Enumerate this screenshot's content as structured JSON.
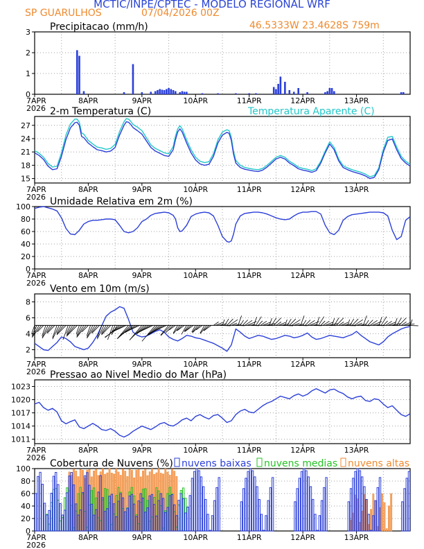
{
  "header": {
    "title": "MCTIC/INPE/CPTEC - MODELO REGIONAL WRF",
    "station": "SP GUARULHOS",
    "run": "07/04/2026 00Z",
    "coords": "46.5333W 23.4628S 759m"
  },
  "colors": {
    "title": "#2a44d6",
    "orange": "#ef8a2e",
    "blue": "#2b3fd8",
    "cyan": "#22c7c9",
    "green": "#25c325",
    "grid": "#a0a0a0"
  },
  "x_axis": {
    "ticks": [
      "7APR",
      "8APR",
      "9APR",
      "10APR",
      "11APR",
      "12APR",
      "13APR"
    ],
    "year": "2026",
    "hours": 168
  },
  "chart_data": [
    {
      "type": "bar",
      "id": "precip",
      "title": "Precipitacao (mm/h)",
      "ylim": [
        0,
        3
      ],
      "yticks": [
        0,
        1,
        2,
        3
      ],
      "x_hours": [
        19,
        20,
        22,
        40,
        44,
        48,
        52,
        54,
        55,
        56,
        57,
        58,
        59,
        60,
        61,
        62,
        63,
        65,
        66,
        67,
        68,
        75,
        82,
        90,
        96,
        99,
        107,
        108,
        109,
        110,
        112,
        114,
        116,
        118,
        122,
        130,
        131,
        132,
        133,
        134,
        164,
        165
      ],
      "values": [
        2.12,
        1.85,
        0.15,
        0.1,
        1.45,
        0.1,
        0.12,
        0.15,
        0.2,
        0.25,
        0.22,
        0.2,
        0.25,
        0.3,
        0.25,
        0.2,
        0.15,
        0.1,
        0.15,
        0.12,
        0.12,
        0.05,
        0.05,
        0.05,
        0.05,
        0.05,
        0.35,
        0.25,
        0.5,
        0.85,
        0.6,
        0.2,
        0.12,
        0.3,
        0.1,
        0.1,
        0.15,
        0.3,
        0.3,
        0.15,
        0.1,
        0.1
      ]
    },
    {
      "type": "line",
      "id": "temp",
      "title": "2-m Temperatura (C)",
      "legend": "Temperatura Aparente (C)",
      "ylim": [
        14,
        29
      ],
      "yticks": [
        15,
        18,
        21,
        24,
        27
      ],
      "x": [
        0,
        2,
        4,
        6,
        8,
        10,
        12,
        14,
        16,
        18,
        19,
        20,
        21,
        22,
        24,
        26,
        28,
        30,
        32,
        34,
        36,
        38,
        40,
        41,
        42,
        43,
        44,
        46,
        48,
        50,
        52,
        54,
        56,
        58,
        60,
        62,
        63,
        64,
        65,
        66,
        68,
        70,
        72,
        74,
        76,
        78,
        80,
        82,
        84,
        86,
        87,
        88,
        89,
        90,
        92,
        94,
        96,
        98,
        100,
        102,
        104,
        106,
        108,
        110,
        111,
        112,
        114,
        116,
        118,
        120,
        122,
        124,
        126,
        128,
        130,
        132,
        134,
        136,
        138,
        140,
        142,
        144,
        146,
        148,
        150,
        152,
        154,
        156,
        158,
        160,
        162,
        164,
        166,
        168
      ],
      "series": [
        {
          "values": [
            20.8,
            20.2,
            19.3,
            17.8,
            17.0,
            17.2,
            20.0,
            23.8,
            26.4,
            27.6,
            27.7,
            27.0,
            24.5,
            24.2,
            23.0,
            22.2,
            21.5,
            21.3,
            21.0,
            21.2,
            22.0,
            24.8,
            27.0,
            27.8,
            27.7,
            27.2,
            26.5,
            25.8,
            25.0,
            23.5,
            22.0,
            21.2,
            20.7,
            20.2,
            20.0,
            21.5,
            23.8,
            25.5,
            26.2,
            25.5,
            23.0,
            20.8,
            19.2,
            18.3,
            18.0,
            18.2,
            20.0,
            23.0,
            24.8,
            25.4,
            25.2,
            23.6,
            20.5,
            18.5,
            17.5,
            17.1,
            16.9,
            16.7,
            16.6,
            16.9,
            17.6,
            18.5,
            19.4,
            19.8,
            19.6,
            19.4,
            18.5,
            17.9,
            17.2,
            16.9,
            16.7,
            16.4,
            16.8,
            18.5,
            20.8,
            22.8,
            21.5,
            19.0,
            17.5,
            17.0,
            16.6,
            16.3,
            16.0,
            15.6,
            15.0,
            15.3,
            17.0,
            21.0,
            23.6,
            23.9,
            21.5,
            19.5,
            18.5,
            17.8
          ]
        },
        {
          "values": [
            21.3,
            20.7,
            19.8,
            18.4,
            17.6,
            17.8,
            20.8,
            24.8,
            27.3,
            28.4,
            28.4,
            27.7,
            25.3,
            25.0,
            23.6,
            22.8,
            22.1,
            21.9,
            21.6,
            21.8,
            22.7,
            25.6,
            27.8,
            28.5,
            28.4,
            27.9,
            27.2,
            26.6,
            25.8,
            24.2,
            22.6,
            21.8,
            21.3,
            20.8,
            20.6,
            22.2,
            24.6,
            26.2,
            26.9,
            26.2,
            23.7,
            21.5,
            19.8,
            18.9,
            18.6,
            18.8,
            20.6,
            23.7,
            25.5,
            26.0,
            25.8,
            24.3,
            21.1,
            19.1,
            18.0,
            17.5,
            17.3,
            17.1,
            17.0,
            17.3,
            18.0,
            18.9,
            19.8,
            20.2,
            20.0,
            19.8,
            18.9,
            18.3,
            17.6,
            17.3,
            17.1,
            16.8,
            17.2,
            18.9,
            21.2,
            23.3,
            22.0,
            19.4,
            17.9,
            17.4,
            17.0,
            16.7,
            16.4,
            16.0,
            15.4,
            15.7,
            17.4,
            21.6,
            24.3,
            24.5,
            22.1,
            20.0,
            18.9,
            18.2
          ]
        }
      ]
    },
    {
      "type": "line",
      "id": "rh",
      "title": "Umidade Relativa em 2m (%)",
      "ylim": [
        0,
        100
      ],
      "yticks": [
        0,
        20,
        40,
        60,
        80,
        100
      ],
      "x": [
        0,
        2,
        4,
        6,
        8,
        10,
        12,
        14,
        16,
        18,
        20,
        22,
        24,
        26,
        28,
        30,
        32,
        34,
        36,
        38,
        40,
        42,
        44,
        46,
        48,
        50,
        52,
        54,
        56,
        58,
        60,
        62,
        63,
        64,
        65,
        66,
        68,
        70,
        72,
        74,
        76,
        78,
        80,
        82,
        84,
        86,
        87,
        88,
        89,
        90,
        92,
        94,
        96,
        98,
        100,
        102,
        104,
        106,
        108,
        110,
        112,
        114,
        116,
        118,
        120,
        122,
        124,
        126,
        128,
        130,
        132,
        134,
        136,
        138,
        140,
        142,
        144,
        146,
        148,
        150,
        152,
        154,
        156,
        158,
        160,
        162,
        164,
        166,
        168
      ],
      "series": [
        {
          "values": [
            97,
            99,
            100,
            98,
            96,
            93,
            82,
            65,
            56,
            55,
            62,
            72,
            76,
            78,
            78,
            79,
            80,
            80,
            79,
            70,
            60,
            58,
            60,
            66,
            76,
            80,
            86,
            89,
            90,
            91,
            90,
            86,
            80,
            66,
            60,
            61,
            70,
            84,
            88,
            90,
            91,
            90,
            85,
            70,
            52,
            44,
            43,
            45,
            56,
            72,
            85,
            89,
            90,
            91,
            91,
            90,
            88,
            85,
            82,
            80,
            79,
            80,
            85,
            89,
            91,
            91,
            92,
            92,
            88,
            70,
            58,
            55,
            62,
            78,
            84,
            87,
            88,
            89,
            90,
            91,
            91,
            91,
            90,
            85,
            62,
            47,
            52,
            78,
            84
          ]
        }
      ]
    },
    {
      "type": "line",
      "id": "wind",
      "title": "Vento em 10m (m/s)",
      "ylim": [
        1,
        9
      ],
      "yticks": [
        2,
        4,
        6,
        8
      ],
      "barbs_y": 5.05,
      "x": [
        0,
        2,
        4,
        6,
        8,
        10,
        12,
        14,
        16,
        18,
        20,
        22,
        24,
        26,
        28,
        30,
        32,
        34,
        36,
        38,
        40,
        42,
        44,
        46,
        48,
        50,
        52,
        54,
        56,
        58,
        60,
        62,
        64,
        66,
        68,
        70,
        72,
        74,
        76,
        78,
        80,
        82,
        84,
        86,
        88,
        90,
        92,
        94,
        96,
        98,
        100,
        102,
        104,
        106,
        108,
        110,
        112,
        114,
        116,
        118,
        120,
        122,
        124,
        126,
        128,
        130,
        132,
        134,
        136,
        138,
        140,
        142,
        144,
        146,
        148,
        150,
        152,
        154,
        156,
        158,
        160,
        162,
        164,
        166,
        168
      ],
      "series": [
        {
          "values": [
            2.8,
            2.4,
            2.0,
            1.9,
            2.4,
            2.9,
            3.6,
            3.4,
            3.0,
            2.4,
            2.2,
            2.0,
            2.2,
            2.9,
            3.8,
            5.0,
            6.2,
            6.7,
            7.0,
            7.4,
            7.2,
            5.8,
            4.2,
            3.8,
            3.6,
            3.7,
            4.0,
            4.3,
            4.5,
            4.2,
            3.6,
            3.3,
            3.1,
            3.4,
            3.8,
            3.7,
            3.5,
            3.4,
            3.2,
            3.0,
            2.8,
            2.5,
            2.2,
            1.8,
            2.6,
            4.6,
            4.2,
            3.7,
            3.4,
            3.6,
            3.8,
            3.7,
            3.5,
            3.3,
            3.4,
            3.6,
            3.8,
            3.7,
            3.5,
            3.6,
            3.8,
            4.1,
            3.6,
            3.3,
            3.4,
            3.6,
            3.8,
            3.7,
            3.6,
            3.5,
            3.7,
            3.9,
            4.3,
            3.8,
            3.4,
            3.0,
            2.8,
            2.6,
            3.0,
            3.6,
            4.0,
            4.3,
            4.6,
            4.8,
            4.9
          ]
        }
      ]
    },
    {
      "type": "line",
      "id": "press",
      "title": "Pressao ao Nivel Medio do Mar (hPa)",
      "ylim": [
        1010,
        1024.5
      ],
      "yticks": [
        1011,
        1014,
        1017,
        1020,
        1023
      ],
      "x": [
        0,
        2,
        4,
        6,
        8,
        10,
        12,
        14,
        16,
        18,
        20,
        22,
        24,
        26,
        28,
        30,
        32,
        34,
        36,
        38,
        40,
        42,
        44,
        46,
        48,
        50,
        52,
        54,
        56,
        58,
        60,
        62,
        64,
        66,
        68,
        70,
        72,
        74,
        76,
        78,
        80,
        82,
        84,
        86,
        88,
        90,
        92,
        94,
        96,
        98,
        100,
        102,
        104,
        106,
        108,
        110,
        112,
        114,
        116,
        118,
        120,
        122,
        124,
        126,
        128,
        130,
        132,
        134,
        136,
        138,
        140,
        142,
        144,
        146,
        148,
        150,
        152,
        154,
        156,
        158,
        160,
        162,
        164,
        166,
        168
      ],
      "series": [
        {
          "values": [
            1019.0,
            1019.4,
            1018.2,
            1017.6,
            1018.0,
            1017.2,
            1015.2,
            1014.5,
            1015.0,
            1015.4,
            1013.8,
            1013.4,
            1014.0,
            1014.6,
            1014.0,
            1013.2,
            1013.0,
            1013.4,
            1012.8,
            1011.9,
            1011.5,
            1012.0,
            1012.8,
            1013.4,
            1014.0,
            1013.6,
            1013.2,
            1013.8,
            1014.5,
            1014.8,
            1014.2,
            1014.0,
            1014.6,
            1015.4,
            1015.8,
            1015.2,
            1016.2,
            1016.6,
            1016.0,
            1015.6,
            1016.4,
            1016.6,
            1015.8,
            1014.8,
            1015.2,
            1016.6,
            1017.4,
            1017.8,
            1017.2,
            1017.0,
            1017.8,
            1018.6,
            1019.2,
            1019.6,
            1020.2,
            1020.8,
            1020.5,
            1020.2,
            1020.9,
            1021.3,
            1020.8,
            1021.2,
            1022.0,
            1022.5,
            1022.0,
            1021.5,
            1022.2,
            1022.4,
            1021.8,
            1021.4,
            1020.6,
            1020.2,
            1020.6,
            1020.8,
            1019.8,
            1019.6,
            1020.2,
            1020.0,
            1019.0,
            1018.2,
            1018.6,
            1017.6,
            1016.6,
            1016.2,
            1016.8
          ]
        }
      ]
    },
    {
      "type": "bar",
      "id": "clouds",
      "title": "Cobertura de Nuvens (%)",
      "ylim": [
        0,
        100
      ],
      "yticks": [
        0,
        20,
        40,
        60,
        80,
        100
      ],
      "series": [
        {
          "name": "nuvens baixas"
        },
        {
          "name": "nuvens medias"
        },
        {
          "name": "nuvens altas"
        }
      ]
    }
  ]
}
